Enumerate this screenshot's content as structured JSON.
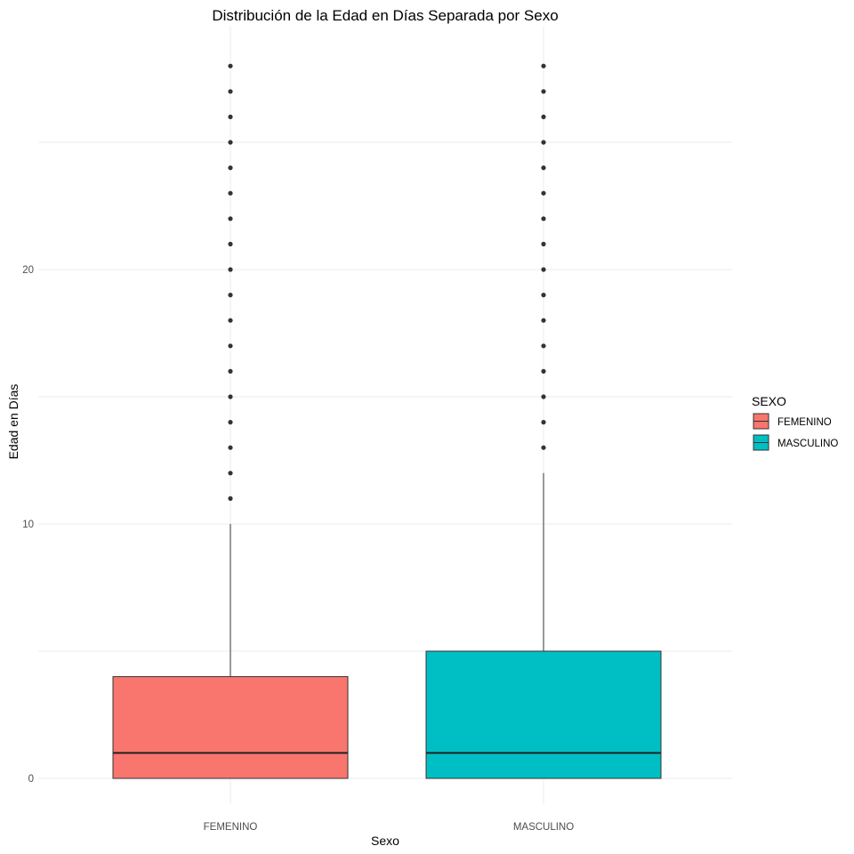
{
  "chart_data": {
    "type": "boxplot",
    "title": "Distribución de la Edad en Días Separada por Sexo",
    "xlabel": "Sexo",
    "ylabel": "Edad en Días",
    "ylim": [
      -1,
      30
    ],
    "y_ticks": [
      0,
      10,
      20
    ],
    "grid": true,
    "categories": [
      "FEMENINO",
      "MASCULINO"
    ],
    "series": [
      {
        "name": "FEMENINO",
        "color": "#F8766D",
        "min": 0,
        "q1": 0,
        "median": 1,
        "q3": 4,
        "whisker_high": 10,
        "outliers": [
          11,
          12,
          13,
          14,
          15,
          16,
          17,
          18,
          19,
          20,
          21,
          22,
          23,
          24,
          25,
          26,
          27,
          28
        ]
      },
      {
        "name": "MASCULINO",
        "color": "#00BFC4",
        "min": 0,
        "q1": 0,
        "median": 1,
        "q3": 5,
        "whisker_high": 12,
        "outliers": [
          13,
          14,
          15,
          16,
          17,
          18,
          19,
          20,
          21,
          22,
          23,
          24,
          25,
          26,
          27,
          28
        ]
      }
    ],
    "legend": {
      "title": "SEXO",
      "position": "right",
      "items": [
        "FEMENINO",
        "MASCULINO"
      ]
    }
  }
}
